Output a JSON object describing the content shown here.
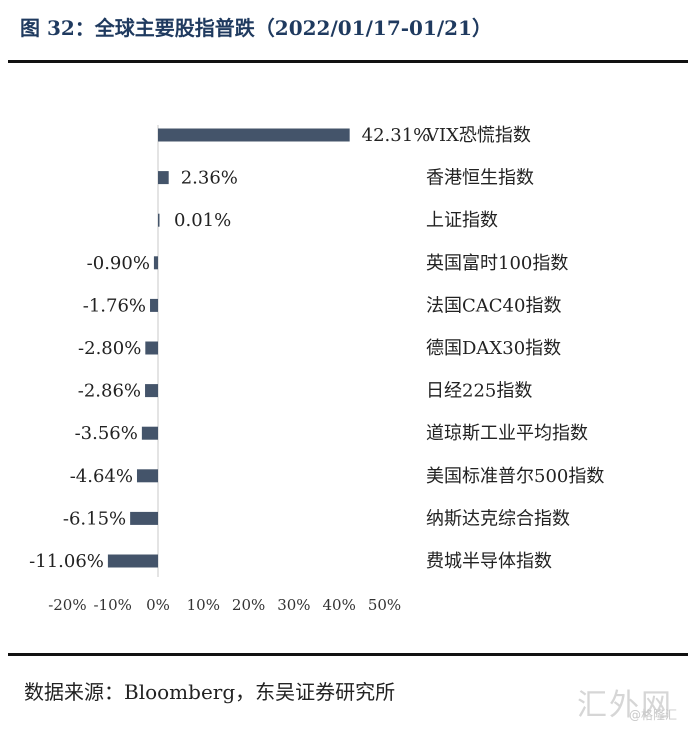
{
  "figure_title": "图 32：全球主要股指普跌（2022/01/17-01/21）",
  "source": "数据来源：Bloomberg，东吴证券研究所",
  "watermark": "汇外网",
  "watermark_sub": "@格隆汇",
  "chart_data": {
    "type": "bar",
    "orientation": "horizontal",
    "categories": [
      "VIX恐慌指数",
      "香港恒生指数",
      "上证指数",
      "英国富时100指数",
      "法国CAC40指数",
      "德国DAX30指数",
      "日经225指数",
      "道琼斯工业平均指数",
      "美国标准普尔500指数",
      "纳斯达克综合指数",
      "费城半导体指数"
    ],
    "values": [
      42.31,
      2.36,
      0.01,
      -0.9,
      -1.76,
      -2.8,
      -2.86,
      -3.56,
      -4.64,
      -6.15,
      -11.06
    ],
    "value_labels": [
      "42.31%",
      "2.36%",
      "0.01%",
      "-0.90%",
      "-1.76%",
      "-2.80%",
      "-2.86%",
      "-3.56%",
      "-4.64%",
      "-6.15%",
      "-11.06%"
    ],
    "xticks": [
      "-20%",
      "-10%",
      "0%",
      "10%",
      "20%",
      "30%",
      "40%",
      "50%"
    ],
    "xlim": [
      -20,
      50
    ],
    "bar_color": "#44546a",
    "grid": false
  }
}
